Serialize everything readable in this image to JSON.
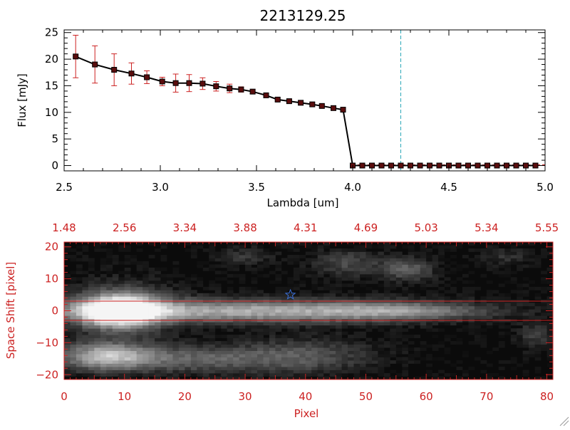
{
  "colors": {
    "axis_black": "#000000",
    "axis_red": "#cc2222",
    "errorbar": "#cc2222",
    "marker_fill": "#5a0d0d",
    "dashed_line": "#2aa7b8",
    "star": "#3a6fd8",
    "image_bg": "#0b0b0b"
  },
  "chart_data": [
    {
      "type": "line",
      "title": "2213129.25",
      "xlabel": "Lambda [um]",
      "ylabel": "Flux [mJy]",
      "xlim": [
        2.5,
        5.0
      ],
      "ylim": [
        -1,
        25.5
      ],
      "xticks": [
        2.5,
        3.0,
        3.5,
        4.0,
        4.5,
        5.0
      ],
      "xtick_labels": [
        "2.5",
        "3.0",
        "3.5",
        "4.0",
        "4.5",
        "5.0"
      ],
      "yticks": [
        0,
        5,
        10,
        15,
        20,
        25
      ],
      "ytick_labels": [
        "0",
        "5",
        "10",
        "15",
        "20",
        "25"
      ],
      "vline_x": 4.25,
      "series": [
        {
          "x": [
            2.56,
            2.66,
            2.76,
            2.85,
            2.93,
            3.01,
            3.08,
            3.15,
            3.22,
            3.29,
            3.36,
            3.42,
            3.48,
            3.55,
            3.61,
            3.67,
            3.73,
            3.79,
            3.84,
            3.9,
            3.95,
            4.0,
            4.05,
            4.1,
            4.15,
            4.2,
            4.25,
            4.3,
            4.35,
            4.4,
            4.45,
            4.5,
            4.55,
            4.6,
            4.65,
            4.7,
            4.75,
            4.8,
            4.85,
            4.9,
            4.95
          ],
          "y": [
            20.5,
            19.0,
            18.0,
            17.3,
            16.6,
            15.8,
            15.5,
            15.5,
            15.4,
            14.9,
            14.5,
            14.3,
            13.9,
            13.2,
            12.4,
            12.1,
            11.8,
            11.5,
            11.2,
            10.8,
            10.5,
            0,
            0,
            0,
            0,
            0,
            0,
            0,
            0,
            0,
            0,
            0,
            0,
            0,
            0,
            0,
            0,
            0,
            0,
            0,
            0
          ],
          "yerr": [
            4.0,
            3.5,
            3.0,
            2.0,
            1.2,
            0.8,
            1.7,
            1.6,
            1.1,
            0.9,
            0.8,
            0.5,
            0.4,
            0.3,
            0.3,
            0.3,
            0.3,
            0.3,
            0.3,
            0.3,
            0.3,
            0,
            0,
            0,
            0,
            0,
            0,
            0,
            0,
            0,
            0,
            0,
            0,
            0,
            0,
            0,
            0,
            0,
            0,
            0,
            0
          ]
        }
      ]
    },
    {
      "type": "heatmap",
      "xlabel": "Pixel",
      "ylabel": "Space Shift [pixel]",
      "xlim": [
        0,
        81
      ],
      "ylim": [
        -21.5,
        21.5
      ],
      "xticks": [
        0,
        10,
        20,
        30,
        40,
        50,
        60,
        70,
        80
      ],
      "xtick_labels": [
        "0",
        "10",
        "20",
        "30",
        "40",
        "50",
        "60",
        "70",
        "80"
      ],
      "yticks": [
        -20,
        -10,
        0,
        10,
        20
      ],
      "ytick_labels": [
        "−20",
        "−10",
        "0",
        "10",
        "20"
      ],
      "top_tick_labels": [
        "1.48",
        "2.56",
        "3.34",
        "3.88",
        "4.31",
        "4.69",
        "5.03",
        "5.34",
        "5.55"
      ],
      "aperture_lines_y": [
        3,
        -3
      ],
      "star_marker": {
        "x": 37.5,
        "y": 5.0
      },
      "blobs": [
        {
          "x": 9,
          "y": 0,
          "sx": 4.5,
          "sy": 3.5,
          "a": 1.0
        },
        {
          "x": 28,
          "y": 0,
          "sx": 22,
          "sy": 2.5,
          "a": 0.65
        },
        {
          "x": 55,
          "y": 0,
          "sx": 10,
          "sy": 2.0,
          "a": 0.35
        },
        {
          "x": 10,
          "y": 1,
          "sx": 6,
          "sy": 6,
          "a": 0.25
        },
        {
          "x": 7,
          "y": -14,
          "sx": 5,
          "sy": 3,
          "a": 0.6
        },
        {
          "x": 20,
          "y": -15,
          "sx": 12,
          "sy": 3,
          "a": 0.35
        },
        {
          "x": 40,
          "y": -14,
          "sx": 8,
          "sy": 4,
          "a": 0.25
        },
        {
          "x": 57,
          "y": 13,
          "sx": 3,
          "sy": 2.5,
          "a": 0.35
        },
        {
          "x": 47,
          "y": 15,
          "sx": 4,
          "sy": 3,
          "a": 0.25
        },
        {
          "x": 30,
          "y": 17,
          "sx": 3,
          "sy": 2,
          "a": 0.18
        },
        {
          "x": 78,
          "y": -8,
          "sx": 2,
          "sy": 3,
          "a": 0.2
        },
        {
          "x": 73,
          "y": 17,
          "sx": 3,
          "sy": 2,
          "a": 0.15
        }
      ]
    }
  ]
}
